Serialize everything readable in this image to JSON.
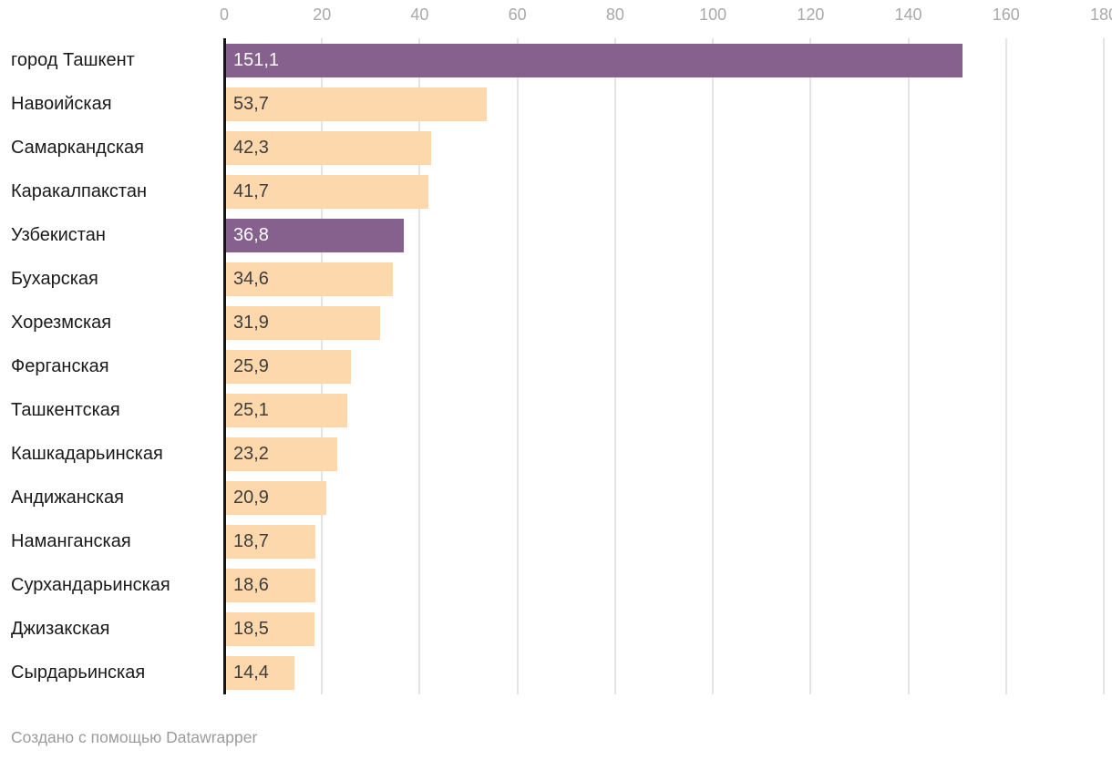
{
  "chart_data": {
    "type": "bar",
    "orientation": "horizontal",
    "title": "",
    "xlabel": "",
    "ylabel": "",
    "legend": "none",
    "grid": true,
    "categories": [
      "город Ташкент",
      "Навоийская",
      "Самаркандская",
      "Каракалпакстан",
      "Узбекистан",
      "Бухарская",
      "Хорезмская",
      "Ферганская",
      "Ташкентская",
      "Кашкадарьинская",
      "Андижанская",
      "Наманганская",
      "Сурхандарьинская",
      "Джизакская",
      "Сырдарьинская"
    ],
    "values": [
      151.1,
      53.7,
      42.3,
      41.7,
      36.8,
      34.6,
      31.9,
      25.9,
      25.1,
      23.2,
      20.9,
      18.7,
      18.6,
      18.5,
      14.4
    ],
    "value_labels": [
      "151,1",
      "53,7",
      "42,3",
      "41,7",
      "36,8",
      "34,6",
      "31,9",
      "25,9",
      "25,1",
      "23,2",
      "20,9",
      "18,7",
      "18,6",
      "18,5",
      "14,4"
    ],
    "highlight_flags": [
      true,
      false,
      false,
      false,
      true,
      false,
      false,
      false,
      false,
      false,
      false,
      false,
      false,
      false,
      false
    ],
    "highlighted_categories": [
      "город Ташкент",
      "Узбекистан"
    ],
    "axis": {
      "min": 0,
      "max": 180,
      "step": 20,
      "ticks": [
        0,
        20,
        40,
        60,
        80,
        100,
        120,
        140,
        160,
        180
      ]
    }
  },
  "colors": {
    "bar_default": "#fdd8ac",
    "bar_highlight": "#87618e",
    "value_text_default": "#3d3d3d",
    "value_text_highlight": "#ffffff",
    "category_text": "#1a1a1a",
    "axis_tick_text": "#a9a9a9",
    "gridline": "#e4e4e4",
    "axis_line": "#161616",
    "footer_text": "#9b9b9b"
  },
  "footer": {
    "prefix": "Создано с помощью ",
    "brand": "Datawrapper"
  }
}
